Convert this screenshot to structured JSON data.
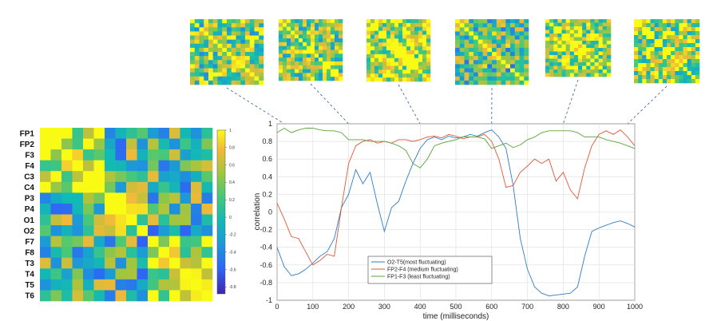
{
  "channels": [
    "FP1",
    "FP2",
    "F3",
    "F4",
    "C3",
    "C4",
    "P3",
    "P4",
    "O1",
    "O2",
    "F7",
    "F8",
    "T3",
    "T4",
    "T5",
    "T6"
  ],
  "colorbar": {
    "ticks": [
      "1",
      "0.8",
      "0.6",
      "0.4",
      "0.2",
      "0",
      "-0.2",
      "-0.4",
      "-0.6",
      "-0.8"
    ],
    "colormap": [
      "#3e26a8",
      "#2f63f6",
      "#1d97d9",
      "#13b9b4",
      "#48c878",
      "#a8c53c",
      "#f0b939",
      "#f9fb15"
    ]
  },
  "chart_data": {
    "type": "line",
    "title": "",
    "xlabel": "time (milliseconds)",
    "ylabel": "correlation",
    "xlim": [
      0,
      1000
    ],
    "ylim": [
      -1,
      1
    ],
    "xticks": [
      "0",
      "100",
      "200",
      "300",
      "400",
      "500",
      "600",
      "700",
      "800",
      "900",
      "1000"
    ],
    "yticks": [
      "1",
      "0.8",
      "0.6",
      "0.4",
      "0.2",
      "0",
      "-0.2",
      "-0.4",
      "-0.6",
      "-0.8",
      "-1"
    ],
    "grid": true,
    "legend_position": "bottom-center",
    "x": [
      0,
      20,
      40,
      60,
      80,
      100,
      120,
      140,
      160,
      180,
      200,
      220,
      240,
      260,
      280,
      300,
      320,
      340,
      360,
      380,
      400,
      420,
      440,
      460,
      480,
      500,
      520,
      540,
      560,
      580,
      600,
      620,
      640,
      660,
      680,
      700,
      720,
      740,
      760,
      780,
      800,
      820,
      840,
      860,
      880,
      900,
      920,
      940,
      960,
      980,
      1000
    ],
    "series": [
      {
        "name": "O2-T5(most fluctuating)",
        "color": "#2e7dc6",
        "values": [
          -0.4,
          -0.62,
          -0.72,
          -0.7,
          -0.65,
          -0.58,
          -0.5,
          -0.45,
          -0.3,
          0.05,
          0.2,
          0.48,
          0.32,
          0.45,
          0.1,
          -0.22,
          0.05,
          0.12,
          0.35,
          0.55,
          0.72,
          0.82,
          0.85,
          0.82,
          0.86,
          0.84,
          0.85,
          0.88,
          0.86,
          0.9,
          0.93,
          0.85,
          0.72,
          0.3,
          -0.3,
          -0.65,
          -0.85,
          -0.92,
          -0.95,
          -0.94,
          -0.93,
          -0.92,
          -0.85,
          -0.5,
          -0.22,
          -0.18,
          -0.15,
          -0.12,
          -0.1,
          -0.13,
          -0.17
        ]
      },
      {
        "name": "FP2-F4 (medium fluctuating)",
        "color": "#e0573a",
        "values": [
          0.1,
          -0.08,
          -0.28,
          -0.3,
          -0.45,
          -0.6,
          -0.55,
          -0.48,
          -0.5,
          0.05,
          0.55,
          0.75,
          0.8,
          0.82,
          0.78,
          0.8,
          0.78,
          0.82,
          0.82,
          0.8,
          0.82,
          0.85,
          0.86,
          0.84,
          0.88,
          0.86,
          0.83,
          0.85,
          0.85,
          0.88,
          0.8,
          0.6,
          0.28,
          0.3,
          0.45,
          0.52,
          0.6,
          0.55,
          0.6,
          0.35,
          0.45,
          0.25,
          0.15,
          0.5,
          0.75,
          0.88,
          0.92,
          0.88,
          0.93,
          0.85,
          0.75
        ]
      },
      {
        "name": "FP1-F3 (least fluctuating)",
        "color": "#5aa33a",
        "values": [
          0.9,
          0.95,
          0.9,
          0.93,
          0.95,
          0.95,
          0.93,
          0.92,
          0.92,
          0.9,
          0.82,
          0.82,
          0.82,
          0.8,
          0.8,
          0.8,
          0.78,
          0.75,
          0.7,
          0.55,
          0.5,
          0.6,
          0.75,
          0.78,
          0.8,
          0.82,
          0.85,
          0.85,
          0.85,
          0.83,
          0.72,
          0.75,
          0.78,
          0.73,
          0.76,
          0.82,
          0.85,
          0.9,
          0.92,
          0.92,
          0.92,
          0.92,
          0.9,
          0.85,
          0.85,
          0.85,
          0.82,
          0.8,
          0.78,
          0.75,
          0.72
        ]
      }
    ]
  }
}
